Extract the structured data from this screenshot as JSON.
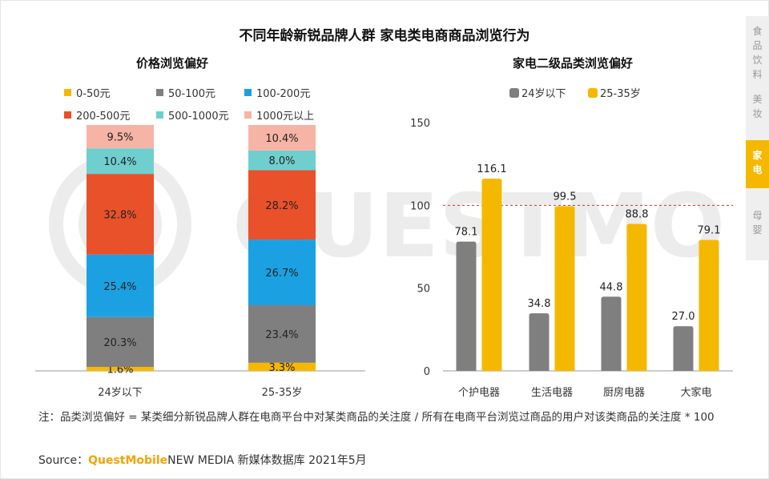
{
  "title": "不同年龄新锐品牌人群 家电类电商商品浏览行为",
  "left_subtitle": "价格浏览偏好",
  "right_subtitle": "家电二级品类浏览偏好",
  "side_nav": [
    {
      "label": "食品饮料",
      "active": false
    },
    {
      "label": "美妆",
      "active": false
    },
    {
      "label": "家电",
      "active": true
    },
    {
      "label": "母婴",
      "active": false
    }
  ],
  "note": "注：品类浏览偏好 = 某类细分新锐品牌人群在电商平台中对某类商品的关注度 / 所有在电商平台浏览过商品的用户对该类商品的关注度 * 100",
  "source_label": "Source：",
  "source_brand": "QuestMobile",
  "source_rest": "NEW MEDIA 新媒体数据库 2021年5月",
  "watermark": "QUESTMOBILE",
  "colors": {
    "gold": "#F5B800",
    "gray": "#7F7F7F",
    "blue": "#1BA1E2",
    "orange": "#E8512A",
    "teal": "#6FCFCF",
    "pink": "#F6B4A6",
    "refline": "#C0392B"
  },
  "chart_data": [
    {
      "type": "bar",
      "stacked": true,
      "title": "价格浏览偏好",
      "categories": [
        "24岁以下",
        "25-35岁"
      ],
      "series": [
        {
          "name": "0-50元",
          "color": "#F5B800",
          "values": [
            1.6,
            3.3
          ],
          "labels": [
            "1.6%",
            "3.3%"
          ]
        },
        {
          "name": "50-100元",
          "color": "#7F7F7F",
          "values": [
            20.3,
            23.4
          ],
          "labels": [
            "20.3%",
            "23.4%"
          ]
        },
        {
          "name": "100-200元",
          "color": "#1BA1E2",
          "values": [
            25.4,
            26.7
          ],
          "labels": [
            "25.4%",
            "26.7%"
          ]
        },
        {
          "name": "200-500元",
          "color": "#E8512A",
          "values": [
            32.8,
            28.2
          ],
          "labels": [
            "32.8%",
            "28.2%"
          ]
        },
        {
          "name": "500-1000元",
          "color": "#6FCFCF",
          "values": [
            10.4,
            8.0
          ],
          "labels": [
            "10.4%",
            "8.0%"
          ]
        },
        {
          "name": "1000元以上",
          "color": "#F6B4A6",
          "values": [
            9.5,
            10.4
          ],
          "labels": [
            "9.5%",
            "10.4%"
          ]
        }
      ],
      "ylim": [
        0,
        100
      ],
      "legend_position": "top"
    },
    {
      "type": "bar",
      "title": "家电二级品类浏览偏好",
      "categories": [
        "个护电器",
        "生活电器",
        "厨房电器",
        "大家电"
      ],
      "series": [
        {
          "name": "24岁以下",
          "color": "#7F7F7F",
          "values": [
            78.1,
            34.8,
            44.8,
            27.0
          ],
          "labels": [
            "78.1",
            "34.8",
            "44.8",
            "27.0"
          ]
        },
        {
          "name": "25-35岁",
          "color": "#F5B800",
          "values": [
            116.1,
            99.5,
            88.8,
            79.1
          ],
          "labels": [
            "116.1",
            "99.5",
            "88.8",
            "79.1"
          ]
        }
      ],
      "yticks": [
        "0",
        "50",
        "100",
        "150"
      ],
      "ylim": [
        0,
        150
      ],
      "reference_line": 100,
      "grid": false,
      "legend_position": "top"
    }
  ]
}
